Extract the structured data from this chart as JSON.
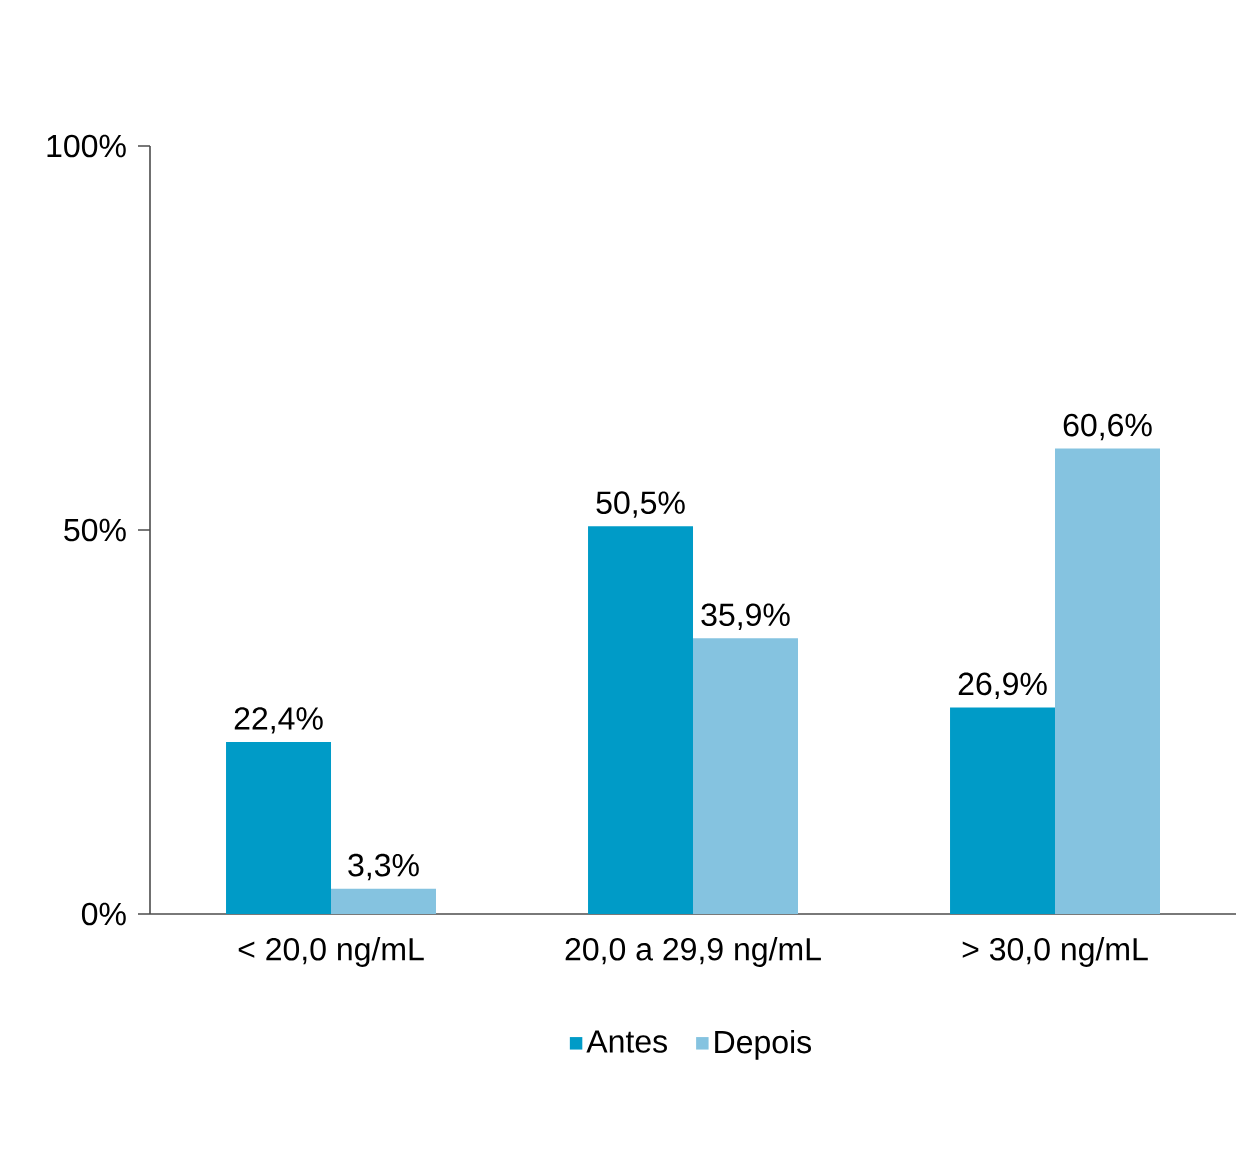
{
  "chart_data": {
    "type": "bar",
    "categories": [
      "< 20,0 ng/mL",
      "20,0 a 29,9 ng/mL",
      "> 30,0 ng/mL"
    ],
    "series": [
      {
        "name": "Antes",
        "color": "#009bc7",
        "values": [
          22.4,
          50.5,
          26.9
        ],
        "value_labels": [
          "22,4%",
          "50,5%",
          "26,9%"
        ]
      },
      {
        "name": "Depois",
        "color": "#85c3e0",
        "values": [
          3.3,
          35.9,
          60.6
        ],
        "value_labels": [
          "3,3%",
          "35,9%",
          "60,6%"
        ]
      }
    ],
    "ylim": [
      0,
      100
    ],
    "yticks": [
      {
        "value": 0,
        "label": "0%"
      },
      {
        "value": 50,
        "label": "50%"
      },
      {
        "value": 100,
        "label": "100%"
      }
    ],
    "legend": "bottom",
    "grid": false
  }
}
